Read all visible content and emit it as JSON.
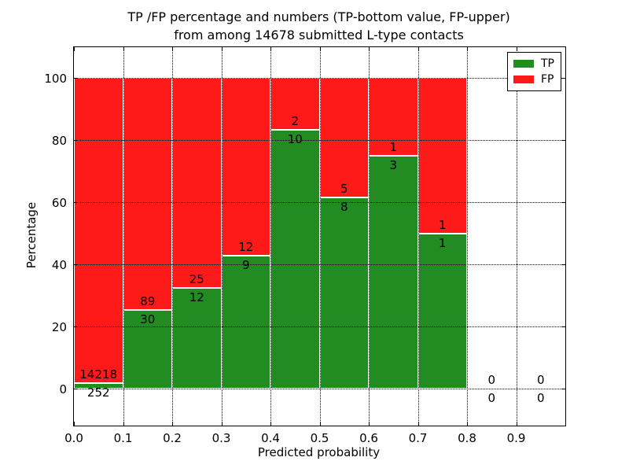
{
  "title_lines": [
    "TP /FP percentage and numbers (TP-bottom value, FP-upper)",
    "from among 14678 submitted L-type contacts"
  ],
  "chart_data": {
    "type": "bar",
    "stacked": true,
    "normalized": "each bin scaled to 100%",
    "title": "TP /FP percentage and numbers (TP-bottom value, FP-upper) from among 14678 submitted L-type contacts",
    "xlabel": "Predicted probability",
    "ylabel": "Percentage",
    "total_contacts": 14678,
    "xlim": [
      0.0,
      1.0
    ],
    "ylim": [
      -12,
      110
    ],
    "bin_width": 0.1,
    "categories": [
      0.0,
      0.1,
      0.2,
      0.3,
      0.4,
      0.5,
      0.6,
      0.7,
      0.8,
      0.9
    ],
    "series": [
      {
        "name": "TP",
        "color": "#228b22",
        "counts": [
          252,
          30,
          12,
          9,
          10,
          8,
          3,
          1,
          0,
          0
        ]
      },
      {
        "name": "FP",
        "color": "#ff1a1a",
        "counts": [
          14218,
          89,
          25,
          12,
          2,
          5,
          1,
          1,
          0,
          0
        ]
      }
    ],
    "tp_percent_per_bin": [
      1.74,
      25.21,
      32.43,
      42.86,
      83.33,
      61.54,
      75.0,
      50.0,
      0,
      0
    ],
    "x_tick_values": [
      0.0,
      0.1,
      0.2,
      0.3,
      0.4,
      0.5,
      0.6,
      0.7,
      0.8,
      0.9
    ],
    "x_tick_labels": [
      "0.0",
      "0.1",
      "0.2",
      "0.3",
      "0.4",
      "0.5",
      "0.6",
      "0.7",
      "0.8",
      "0.9"
    ],
    "y_tick_values": [
      0,
      20,
      40,
      60,
      80,
      100
    ],
    "y_tick_labels": [
      "0",
      "20",
      "40",
      "60",
      "80",
      "100"
    ],
    "grid": {
      "style": "dotted",
      "color": "#000000"
    },
    "bar_edge_color": "#ffffff",
    "legend": {
      "position": "upper right",
      "entries": [
        {
          "label": "TP",
          "color": "#228b22"
        },
        {
          "label": "FP",
          "color": "#ff1a1a"
        }
      ]
    }
  }
}
